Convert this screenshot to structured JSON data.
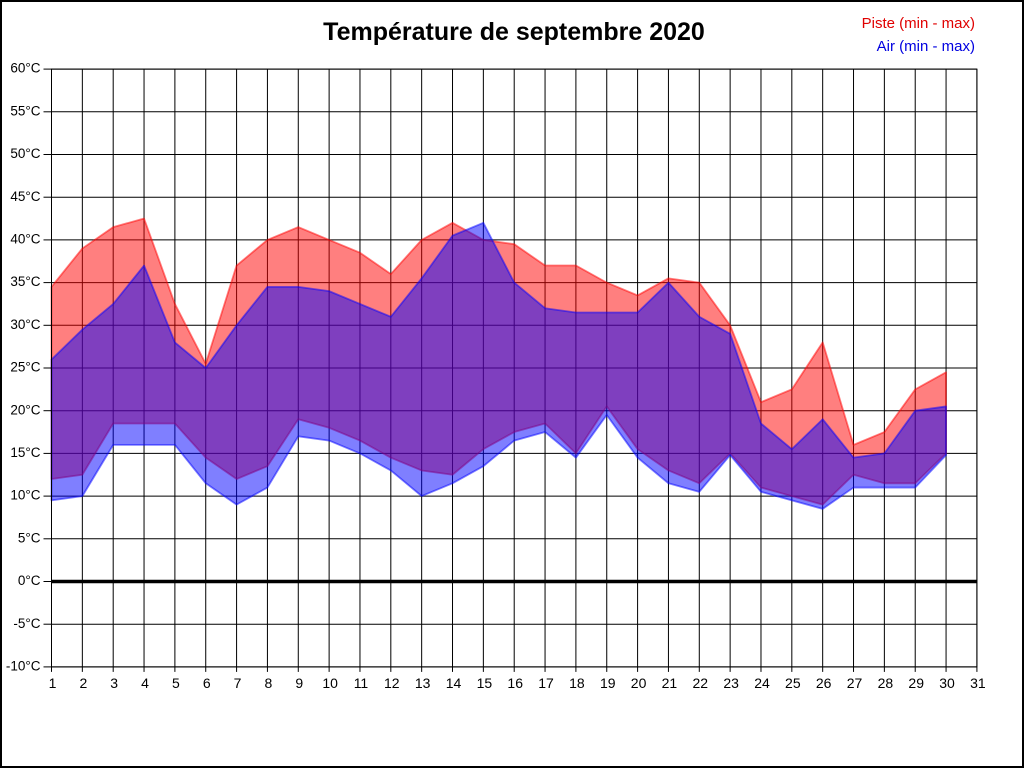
{
  "title": "Température de septembre 2020",
  "chart_data": {
    "type": "area",
    "title": "Température de septembre 2020",
    "unit": "°C",
    "x_days": [
      1,
      2,
      3,
      4,
      5,
      6,
      7,
      8,
      9,
      10,
      11,
      12,
      13,
      14,
      15,
      16,
      17,
      18,
      19,
      20,
      21,
      22,
      23,
      24,
      25,
      26,
      27,
      28,
      29,
      30
    ],
    "series": [
      {
        "name": "Piste (min - max)",
        "color": "#ff0000",
        "fill": "rgba(255,0,0,0.5)",
        "max": [
          34.5,
          39,
          41.5,
          42.5,
          32.5,
          25.5,
          37,
          40,
          41.5,
          40,
          38.5,
          36,
          40,
          42,
          40,
          39.5,
          37,
          37,
          35,
          33.5,
          35.5,
          35,
          30,
          21,
          22.5,
          28,
          16,
          17.5,
          22.5,
          24.5
        ],
        "min": [
          12,
          12.5,
          18.5,
          18.5,
          18.5,
          14.5,
          12,
          13.5,
          19,
          18,
          16.5,
          14.5,
          13,
          12.5,
          15.5,
          17.5,
          18.5,
          15,
          20.5,
          15.5,
          13,
          11.5,
          15,
          11,
          10,
          9,
          12.5,
          11.5,
          11.5,
          15
        ]
      },
      {
        "name": "Air (min - max)",
        "color": "#0000ff",
        "fill": "rgba(0,0,255,0.5)",
        "max": [
          26,
          29.5,
          32.5,
          37,
          28,
          25,
          30,
          34.5,
          34.5,
          34,
          32.5,
          31,
          35.5,
          40.5,
          42,
          35,
          32,
          31.5,
          31.5,
          31.5,
          35,
          31,
          29,
          18.5,
          15.5,
          19,
          14.5,
          15,
          20,
          20.5
        ],
        "min": [
          9.5,
          10,
          16,
          16,
          16,
          11.5,
          9,
          11,
          17,
          16.5,
          15,
          13,
          10,
          11.5,
          13.5,
          16.5,
          17.5,
          14.5,
          19.5,
          14.5,
          11.5,
          10.5,
          14.8,
          10.5,
          9.5,
          8.5,
          11,
          11,
          11,
          14.8
        ]
      }
    ],
    "ylim": [
      -10,
      60
    ],
    "xlim": [
      1,
      31
    ],
    "y_tick_step": 5,
    "y_tick_labels": [
      "60°C",
      "55°C",
      "50°C",
      "45°C",
      "40°C",
      "35°C",
      "30°C",
      "25°C",
      "20°C",
      "15°C",
      "10°C",
      "5°C",
      "0°C",
      "-5°C",
      "-10°C"
    ],
    "y_tick_values": [
      60,
      55,
      50,
      45,
      40,
      35,
      30,
      25,
      20,
      15,
      10,
      5,
      0,
      -5,
      -10
    ],
    "x_tick_labels": [
      "1",
      "2",
      "3",
      "4",
      "5",
      "6",
      "7",
      "8",
      "9",
      "10",
      "11",
      "12",
      "13",
      "14",
      "15",
      "16",
      "17",
      "18",
      "19",
      "20",
      "21",
      "22",
      "23",
      "24",
      "25",
      "26",
      "27",
      "28",
      "29",
      "30",
      "31"
    ],
    "x_tick_values": [
      1,
      2,
      3,
      4,
      5,
      6,
      7,
      8,
      9,
      10,
      11,
      12,
      13,
      14,
      15,
      16,
      17,
      18,
      19,
      20,
      21,
      22,
      23,
      24,
      25,
      26,
      27,
      28,
      29,
      30,
      31
    ],
    "grid": true,
    "grid_color": "#000000",
    "zero_line_thick": true,
    "legend_position": "top-right"
  }
}
